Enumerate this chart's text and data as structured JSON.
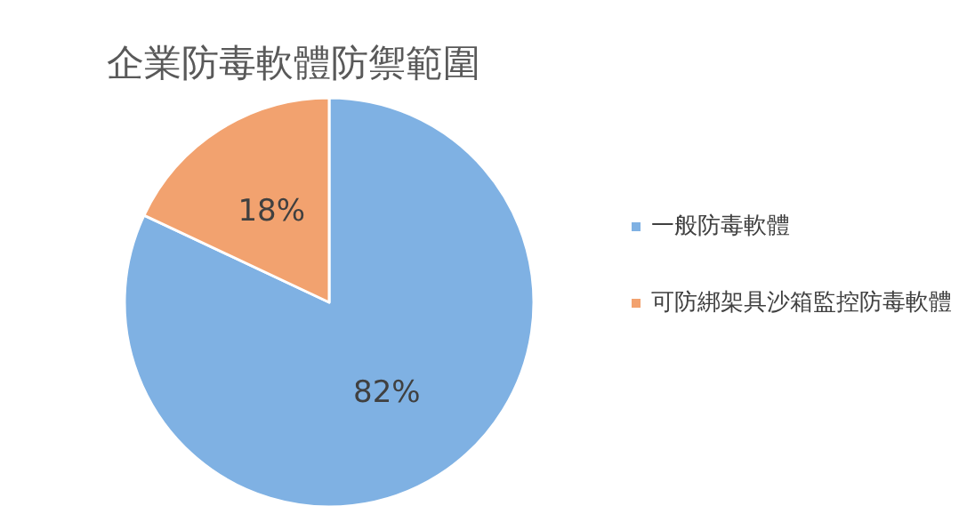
{
  "chart_data": {
    "type": "pie",
    "title": "企業防毒軟體防禦範圍",
    "categories": [
      "一般防毒軟體",
      "可防綁架具沙箱監控防毒軟體"
    ],
    "values": [
      82,
      18
    ],
    "colors": [
      "#7fb1e3",
      "#f2a26f"
    ],
    "value_labels": [
      "82%",
      "18%"
    ],
    "legend": "right"
  }
}
